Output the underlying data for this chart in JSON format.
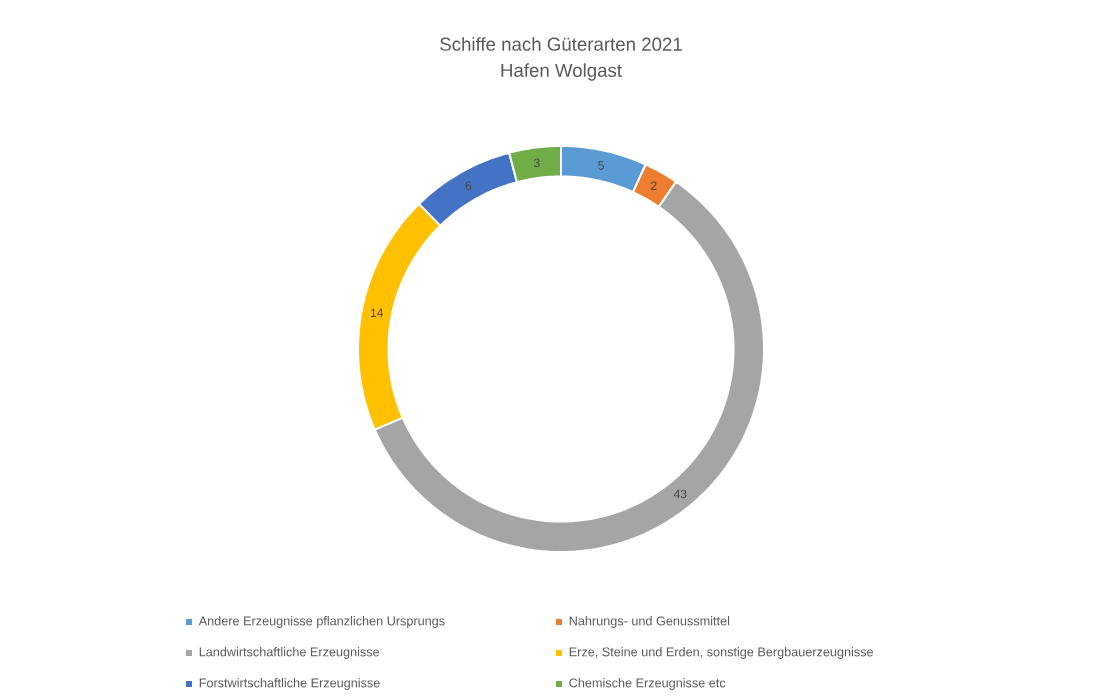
{
  "chart_data": {
    "type": "donut",
    "title": "Schiffe nach Güterarten 2021",
    "subtitle": "Hafen Wolgast",
    "categories": [
      "Andere Erzeugnisse pflanzlichen Ursprungs",
      "Nahrungs- und Genussmittel",
      "Landwirtschaftliche Erzeugnisse",
      "Erze, Steine und Erden, sonstige Bergbauerzeugnisse",
      "Forstwirtschaftliche Erzeugnisse",
      "Chemische Erzeugnisse etc"
    ],
    "values": [
      5,
      2,
      43,
      14,
      6,
      3
    ],
    "colors": [
      "#5b9bd5",
      "#ed7d31",
      "#a5a5a5",
      "#ffc000",
      "#4472c4",
      "#70ad47"
    ],
    "data_labels": true,
    "legend": "bottom"
  }
}
